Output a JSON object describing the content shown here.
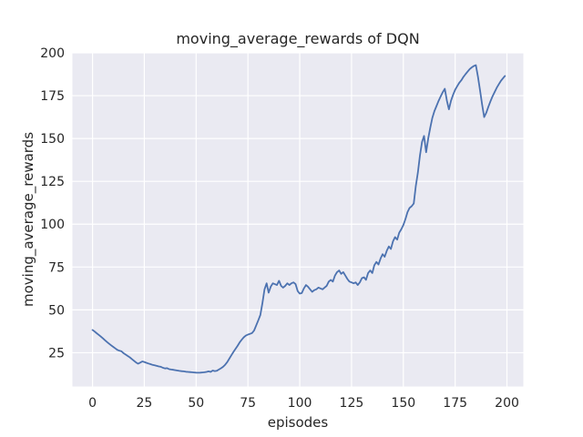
{
  "figure": {
    "kind": "matplotlib-seaborn-figure",
    "background": "#ffffff"
  },
  "chart_data": {
    "type": "line",
    "title": "moving_average_rewards of DQN",
    "xlabel": "episodes",
    "ylabel": "moving_average_rewards",
    "legend_position": "none",
    "grid": true,
    "x_ticks": [
      0,
      25,
      50,
      75,
      100,
      125,
      150,
      175,
      200
    ],
    "y_ticks": [
      25,
      50,
      75,
      100,
      125,
      150,
      175,
      200
    ],
    "xlim": [
      -9.7,
      207.9
    ],
    "ylim": [
      5.3,
      200
    ],
    "style": {
      "axes_background": "#eaeaf2",
      "grid_color": "#ffffff",
      "line_color": "#4c72b0",
      "text_color": "#262626",
      "line_width": 1.8
    },
    "series": [
      {
        "name": "moving_average_rewards",
        "x_start": 0,
        "x_step": 1,
        "values": [
          38.3,
          37.4,
          36.4,
          35.4,
          34.4,
          33.4,
          32.3,
          31.2,
          30.2,
          29.3,
          28.4,
          27.5,
          26.6,
          26.2,
          25.8,
          24.7,
          23.9,
          23.1,
          22.3,
          21.3,
          20.3,
          19.3,
          18.6,
          19.2,
          19.9,
          19.6,
          19.1,
          18.7,
          18.3,
          17.9,
          17.6,
          17.3,
          17.0,
          16.8,
          16.2,
          15.8,
          16.0,
          15.4,
          15.2,
          15.0,
          14.8,
          14.6,
          14.4,
          14.2,
          14.1,
          13.9,
          13.8,
          13.7,
          13.6,
          13.5,
          13.4,
          13.3,
          13.4,
          13.5,
          13.6,
          13.8,
          14.1,
          13.8,
          14.6,
          14.3,
          14.5,
          15.2,
          15.9,
          16.8,
          18.0,
          19.5,
          21.5,
          23.5,
          25.5,
          27.2,
          29.0,
          31.0,
          32.6,
          34.0,
          35.0,
          35.6,
          36.0,
          36.5,
          38.0,
          41.0,
          44.0,
          47.0,
          54.0,
          62.0,
          65.5,
          60.0,
          63.5,
          65.5,
          65.0,
          64.5,
          67.0,
          64.0,
          63.0,
          64.0,
          65.5,
          64.5,
          65.5,
          66.0,
          65.0,
          61.0,
          59.5,
          59.8,
          62.5,
          64.5,
          63.5,
          62.0,
          60.5,
          61.5,
          62.0,
          63.0,
          62.5,
          62.0,
          63.0,
          64.0,
          66.5,
          67.5,
          66.5,
          70.0,
          72.0,
          73.0,
          71.0,
          72.0,
          70.0,
          68.0,
          66.5,
          66.0,
          65.5,
          66.0,
          64.5,
          66.0,
          68.5,
          69.0,
          67.5,
          71.5,
          73.0,
          71.5,
          76.0,
          78.0,
          76.5,
          80.0,
          82.5,
          81.0,
          84.5,
          87.0,
          85.5,
          90.0,
          92.5,
          91.0,
          95.0,
          97.0,
          99.5,
          103.0,
          107.0,
          109.5,
          110.5,
          112.0,
          122.0,
          130.0,
          140.0,
          148.0,
          151.5,
          142.0,
          150.0,
          156.5,
          162.0,
          166.0,
          169.0,
          172.0,
          174.5,
          177.0,
          179.0,
          172.0,
          167.0,
          172.0,
          175.5,
          178.5,
          180.5,
          182.5,
          184.0,
          186.0,
          187.5,
          189.0,
          190.5,
          191.5,
          192.3,
          192.8,
          186.0,
          178.0,
          170.0,
          162.5,
          165.0,
          168.5,
          171.5,
          174.5,
          177.0,
          179.5,
          181.5,
          183.5,
          185.0,
          186.5
        ]
      }
    ]
  }
}
